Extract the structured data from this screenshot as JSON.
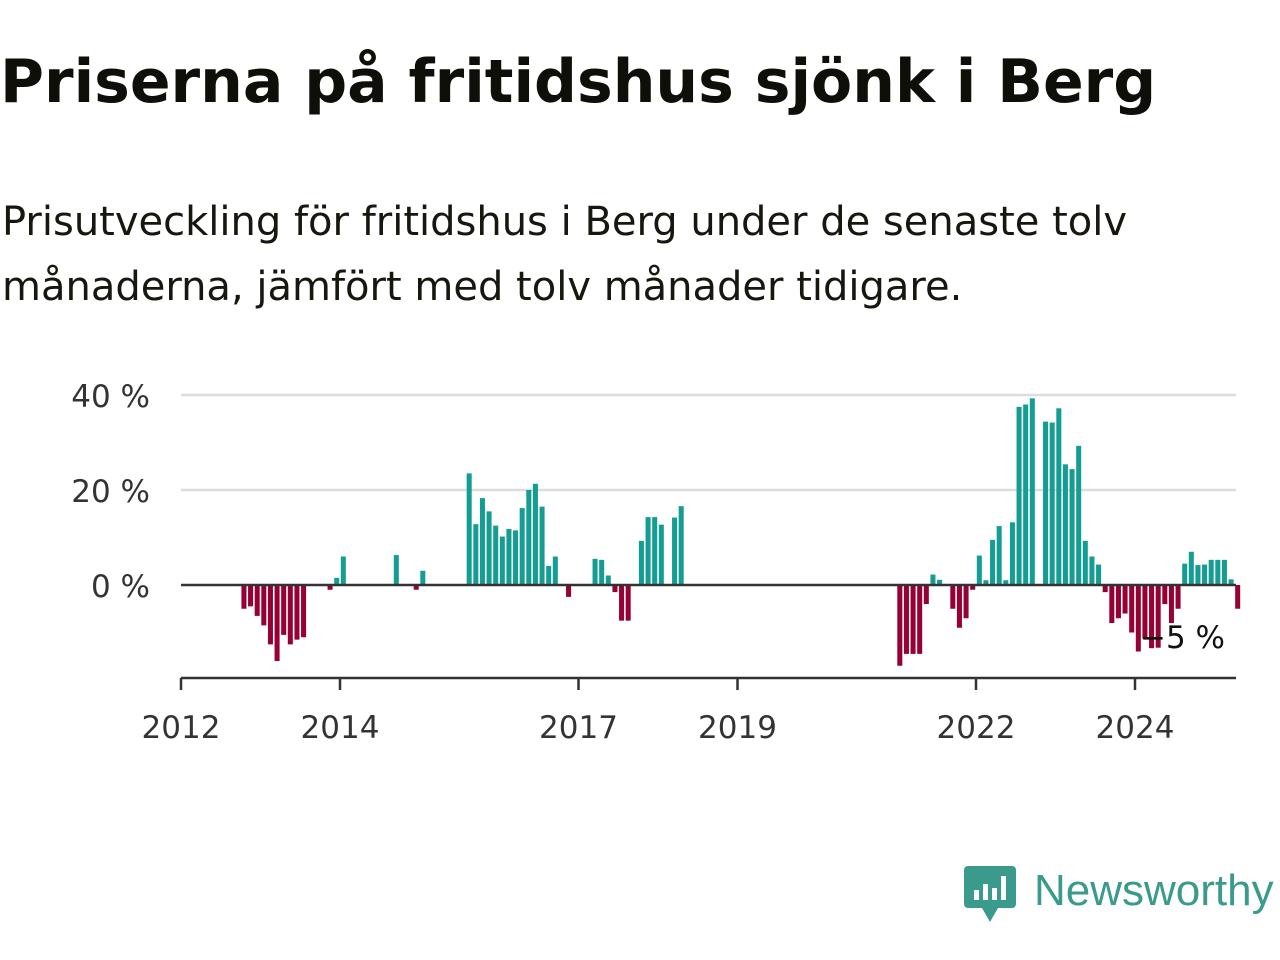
{
  "title": "Priserna på fritidshus sjönk i Berg",
  "subtitle": "Prisutveckling för fritidshus i Berg under de senaste tolv månaderna, jämfört med tolv månader tidigare.",
  "logo": {
    "text": "Newsworthy",
    "icon": "newsworthy-chart-bubble-icon"
  },
  "colors": {
    "positive": "#149e93",
    "negative": "#960032",
    "axis": "#333333",
    "grid": "#dddddd",
    "brand": "#3a9a8c"
  },
  "chart_data": {
    "type": "bar",
    "x_start": "2012-01",
    "frequency": "monthly",
    "y_unit": "%",
    "ylim": [
      -18,
      42
    ],
    "y_ticks": [
      {
        "value": 0,
        "label": "0 %"
      },
      {
        "value": 20,
        "label": "20 %"
      },
      {
        "value": 40,
        "label": "40 %"
      }
    ],
    "x_ticks": [
      {
        "year": 2012,
        "label": "2012"
      },
      {
        "year": 2014,
        "label": "2014"
      },
      {
        "year": 2017,
        "label": "2017"
      },
      {
        "year": 2019,
        "label": "2019"
      },
      {
        "year": 2022,
        "label": "2022"
      },
      {
        "year": 2024,
        "label": "2024"
      }
    ],
    "grid": true,
    "values": [
      null,
      null,
      null,
      null,
      null,
      null,
      null,
      null,
      null,
      -5,
      -4.5,
      -6.5,
      -8.5,
      -12.5,
      -16,
      -10.5,
      -12.5,
      -11.5,
      -11,
      null,
      null,
      null,
      -1,
      1.5,
      6,
      null,
      null,
      null,
      null,
      null,
      null,
      null,
      6.3,
      null,
      null,
      -1,
      3,
      null,
      null,
      null,
      null,
      null,
      null,
      23.5,
      12.8,
      18.3,
      15.5,
      12.5,
      10.2,
      11.8,
      11.5,
      16.2,
      20,
      21.3,
      16.5,
      4,
      6,
      null,
      -2.5,
      null,
      null,
      null,
      5.5,
      5.3,
      2,
      -1.5,
      -7.5,
      -7.5,
      null,
      9.3,
      14.3,
      14.3,
      12.7,
      null,
      14.2,
      16.6,
      null,
      null,
      null,
      null,
      null,
      null,
      null,
      null,
      null,
      null,
      null,
      null,
      null,
      null,
      null,
      null,
      null,
      null,
      null,
      null,
      null,
      null,
      null,
      null,
      null,
      null,
      null,
      null,
      null,
      null,
      null,
      null,
      -17,
      -14.5,
      -14.5,
      -14.5,
      -4,
      2.2,
      1.1,
      null,
      -5,
      -9,
      -7,
      -1,
      6.2,
      1,
      9.5,
      12.4,
      1,
      13.2,
      37.5,
      38,
      39.3,
      null,
      34.4,
      34.2,
      37.2,
      25.4,
      24.4,
      29.3,
      9.3,
      6,
      4.3,
      -1.5,
      -8,
      -7,
      -6,
      -10,
      -14,
      -11.3,
      -13.3,
      -13.2,
      -4,
      -8,
      -5,
      4.5,
      7,
      4.2,
      4.3,
      5.3,
      5.3,
      5.3,
      1.2,
      -5
    ],
    "last_label": "−5 %"
  }
}
